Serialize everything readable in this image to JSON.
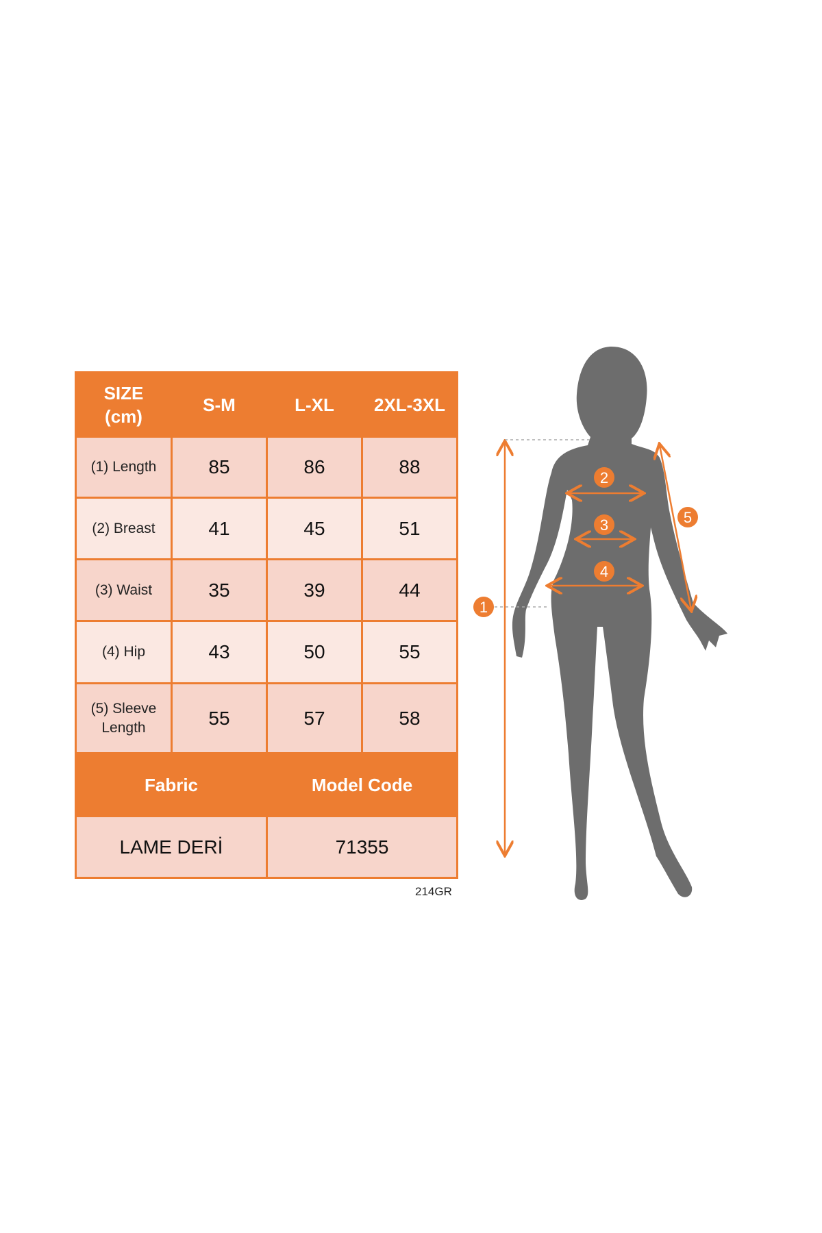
{
  "table": {
    "header": {
      "size_label_line1": "SIZE",
      "size_label_line2": "(cm)",
      "sizes": [
        "S-M",
        "L-XL",
        "2XL-3XL"
      ]
    },
    "rows": [
      {
        "label": "(1) Length",
        "values": [
          "85",
          "86",
          "88"
        ]
      },
      {
        "label": "(2) Breast",
        "values": [
          "41",
          "45",
          "51"
        ]
      },
      {
        "label": "(3) Waist",
        "values": [
          "35",
          "39",
          "44"
        ]
      },
      {
        "label": "(4) Hip",
        "values": [
          "43",
          "50",
          "55"
        ]
      },
      {
        "label_line1": "(5) Sleeve",
        "label_line2": "Length",
        "values": [
          "55",
          "57",
          "58"
        ]
      }
    ],
    "footer": {
      "fabric_label": "Fabric",
      "model_code_label": "Model Code",
      "fabric_value": "LAME DERİ",
      "model_code_value": "71355"
    }
  },
  "code_tag": "214GR",
  "figure": {
    "markers": [
      "1",
      "2",
      "3",
      "4",
      "5"
    ]
  },
  "colors": {
    "accent": "#ED7D31",
    "cell_dark": "#F7D5CB",
    "cell_light": "#FBE8E2",
    "silhouette": "#6D6D6D"
  }
}
